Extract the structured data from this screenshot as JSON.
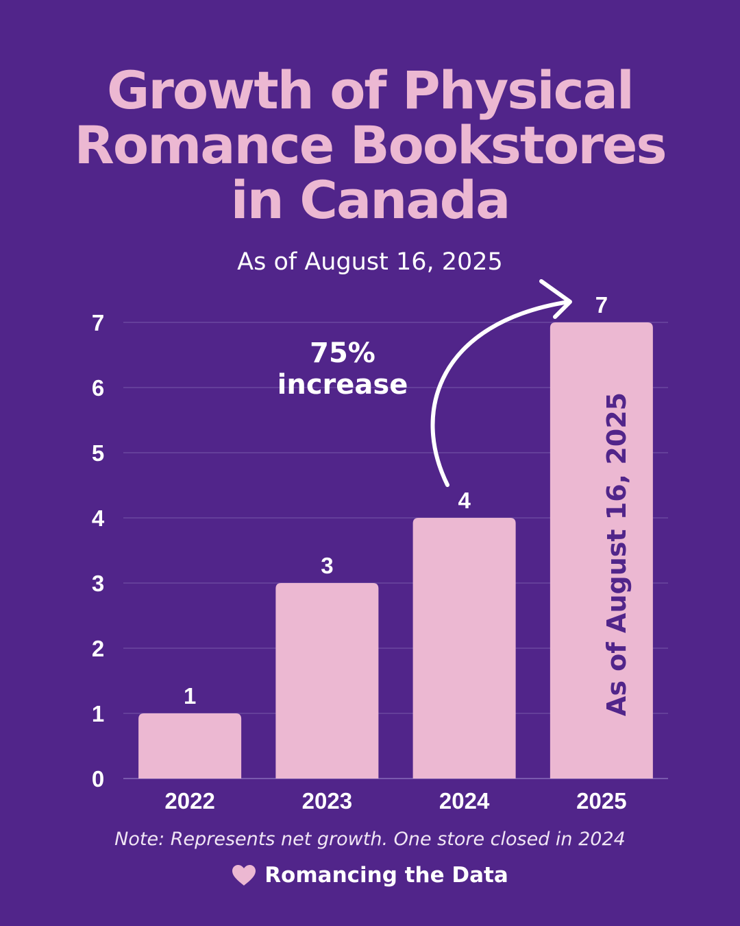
{
  "title_lines": [
    "Growth of Physical",
    "Romance Bookstores",
    "in Canada"
  ],
  "subtitle": "As of August 16, 2025",
  "annotation": {
    "percent": "75%",
    "word": "increase"
  },
  "bar_overlay_text": "As of August 16, 2025",
  "note": "Note: Represents net growth. One store closed in 2024",
  "brand": {
    "name": "Romancing the Data",
    "icon": "heart-icon"
  },
  "colors": {
    "background": "#51258a",
    "bar": "#ecb8d2",
    "text": "#ffffff",
    "grid": "#6a48a0"
  },
  "chart_data": {
    "type": "bar",
    "categories": [
      "2022",
      "2023",
      "2024",
      "2025"
    ],
    "values": [
      1,
      3,
      4,
      7
    ],
    "title": "Growth of Physical Romance Bookstores in Canada",
    "subtitle": "As of August 16, 2025",
    "xlabel": "",
    "ylabel": "",
    "ylim": [
      0,
      7
    ],
    "yticks": [
      0,
      1,
      2,
      3,
      4,
      5,
      6,
      7
    ],
    "grid": true,
    "legend": "none"
  }
}
